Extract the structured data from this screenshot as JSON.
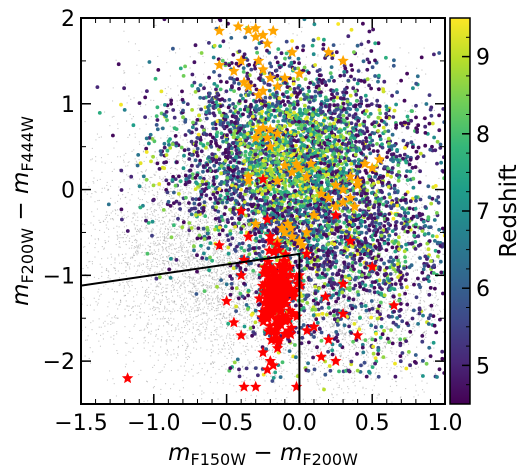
{
  "chart_data": {
    "type": "scatter",
    "xlim": [
      -1.5,
      1.0
    ],
    "ylim": [
      -2.5,
      2.0
    ],
    "x_ticks": [
      {
        "value": -1.5,
        "label": "−1.5"
      },
      {
        "value": -1.0,
        "label": "−1.0"
      },
      {
        "value": -0.5,
        "label": "−0.5"
      },
      {
        "value": 0.0,
        "label": "0.0"
      },
      {
        "value": 0.5,
        "label": "0.5"
      },
      {
        "value": 1.0,
        "label": "1.0"
      }
    ],
    "y_ticks": [
      {
        "value": -2,
        "label": "−2"
      },
      {
        "value": -1,
        "label": "−1"
      },
      {
        "value": 0,
        "label": "0"
      },
      {
        "value": 1,
        "label": "1"
      },
      {
        "value": 2,
        "label": "2"
      }
    ],
    "xlabel": {
      "m1": "m",
      "s1": "F150W",
      "op": " − ",
      "m2": "m",
      "s2": "F200W"
    },
    "ylabel": {
      "m1": "m",
      "s1": "F200W",
      "op": " − ",
      "m2": "m",
      "s2": "F444W"
    },
    "colorbar": {
      "label": "Redshift",
      "range": [
        4.5,
        9.5
      ],
      "ticks": [
        {
          "value": 5,
          "label": "5"
        },
        {
          "value": 6,
          "label": "6"
        },
        {
          "value": 7,
          "label": "7"
        },
        {
          "value": 8,
          "label": "8"
        },
        {
          "value": 9,
          "label": "9"
        }
      ],
      "colormap": "viridis",
      "stops": [
        "#440154",
        "#482878",
        "#3e4a89",
        "#31688e",
        "#26828e",
        "#1f9e89",
        "#35b779",
        "#6ece58",
        "#b5de2b",
        "#fde725"
      ]
    },
    "selection_boundary": {
      "color": "#000000",
      "points": [
        [
          -1.5,
          -1.12
        ],
        [
          0.0,
          -0.75
        ],
        [
          0.0,
          -2.5
        ]
      ]
    },
    "series": [
      {
        "role": "background",
        "color": "#9a9a9a",
        "marker": "dot",
        "count_approx": 9000,
        "x_range": [
          -1.5,
          1.0
        ],
        "y_range": [
          -2.5,
          2.0
        ]
      },
      {
        "role": "colored",
        "color_by": "redshift",
        "marker": "circle",
        "count_approx": 5000,
        "x_range": [
          -1.5,
          1.0
        ],
        "y_range": [
          -2.3,
          2.0
        ]
      },
      {
        "role": "orange_stars",
        "color": "#ffa500",
        "marker": "star",
        "points": [
          [
            -0.55,
            1.85
          ],
          [
            -0.42,
            1.9
          ],
          [
            -0.35,
            1.86
          ],
          [
            -0.3,
            1.88
          ],
          [
            -0.25,
            1.8
          ],
          [
            -0.22,
            1.7
          ],
          [
            -0.18,
            1.85
          ],
          [
            -0.3,
            1.78
          ],
          [
            -0.05,
            1.6
          ],
          [
            0.2,
            1.6
          ],
          [
            0.3,
            1.5
          ],
          [
            -0.55,
            1.45
          ],
          [
            -0.4,
            1.5
          ],
          [
            -0.28,
            1.5
          ],
          [
            -0.25,
            1.4
          ],
          [
            -0.2,
            1.3
          ],
          [
            -0.15,
            1.2
          ],
          [
            -0.25,
            1.15
          ],
          [
            -0.28,
            1.1
          ],
          [
            -0.35,
            1.2
          ],
          [
            -0.1,
            1.3
          ],
          [
            0.0,
            1.35
          ],
          [
            -0.45,
            1.38
          ],
          [
            -0.38,
            1.25
          ],
          [
            -0.2,
            0.7
          ],
          [
            -0.25,
            0.72
          ],
          [
            -0.22,
            0.6
          ],
          [
            -0.2,
            0.5
          ],
          [
            -0.3,
            0.6
          ],
          [
            -0.15,
            0.65
          ],
          [
            -0.28,
            0.68
          ],
          [
            -0.02,
            0.3
          ],
          [
            -0.1,
            0.28
          ],
          [
            0.0,
            0.25
          ],
          [
            -0.05,
            0.2
          ],
          [
            0.05,
            0.15
          ],
          [
            0.08,
            0.3
          ],
          [
            -0.35,
            0.1
          ],
          [
            -0.15,
            0.1
          ],
          [
            0.25,
            0.05
          ],
          [
            0.3,
            0.0
          ],
          [
            0.35,
            0.15
          ],
          [
            0.4,
            0.1
          ],
          [
            0.45,
            0.3
          ],
          [
            0.4,
            0.05
          ],
          [
            0.3,
            -0.15
          ],
          [
            0.35,
            -0.1
          ],
          [
            0.25,
            -0.2
          ],
          [
            0.2,
            -0.1
          ],
          [
            0.1,
            -0.3
          ],
          [
            0.15,
            -0.05
          ],
          [
            0.5,
            0.25
          ],
          [
            0.55,
            0.35
          ],
          [
            0.38,
            -0.2
          ],
          [
            -0.08,
            -0.4
          ],
          [
            -0.06,
            -0.45
          ],
          [
            -0.1,
            -0.5
          ],
          [
            -0.15,
            -0.6
          ],
          [
            -0.05,
            -0.55
          ],
          [
            0.0,
            -0.6
          ],
          [
            -0.12,
            -0.45
          ],
          [
            0.02,
            -0.65
          ],
          [
            0.05,
            -0.5
          ],
          [
            -0.3,
            -0.4
          ],
          [
            -0.35,
            0.15
          ]
        ]
      },
      {
        "role": "red_stars",
        "color": "#ff0000",
        "marker": "star",
        "cluster": {
          "x_center": -0.15,
          "x_spread": 0.1,
          "y_center": -1.25,
          "y_spread": 0.25,
          "count_approx": 170
        },
        "points": [
          [
            -1.18,
            -2.2
          ],
          [
            -0.38,
            -2.3
          ],
          [
            -0.3,
            -2.3
          ],
          [
            -0.02,
            -2.3
          ],
          [
            -0.22,
            -2.1
          ],
          [
            -0.18,
            -2.05
          ],
          [
            -0.2,
            -2.0
          ],
          [
            0.25,
            -2.0
          ],
          [
            0.15,
            -1.95
          ],
          [
            -0.25,
            -1.9
          ],
          [
            -0.15,
            -1.85
          ],
          [
            0.4,
            -1.7
          ],
          [
            0.65,
            -1.35
          ],
          [
            0.18,
            -1.25
          ],
          [
            0.3,
            -1.45
          ],
          [
            0.1,
            -1.6
          ],
          [
            -0.5,
            -1.3
          ],
          [
            -0.45,
            -1.55
          ],
          [
            -0.4,
            -1.7
          ],
          [
            -0.4,
            -1.0
          ],
          [
            -0.38,
            -0.82
          ],
          [
            -0.2,
            -0.6
          ],
          [
            -0.22,
            -0.35
          ],
          [
            -0.4,
            -0.25
          ],
          [
            -0.25,
            0.12
          ],
          [
            0.05,
            -0.75
          ],
          [
            0.35,
            -0.6
          ],
          [
            0.25,
            -0.3
          ],
          [
            -0.1,
            -0.95
          ],
          [
            0.3,
            -1.1
          ],
          [
            -0.55,
            -0.65
          ],
          [
            -0.35,
            -0.55
          ],
          [
            0.5,
            -0.9
          ],
          [
            0.2,
            -1.75
          ],
          [
            0.0,
            -1.0
          ]
        ]
      }
    ]
  }
}
